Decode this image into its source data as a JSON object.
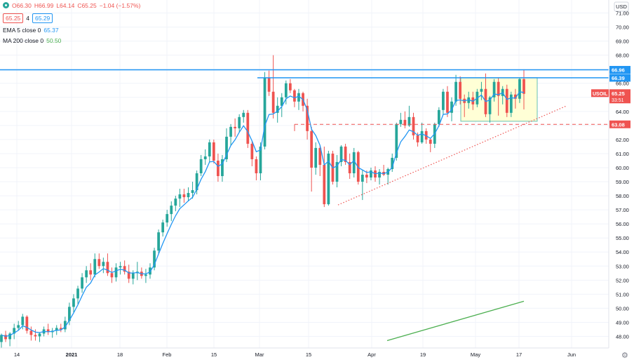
{
  "legend": {
    "open": "O66.30",
    "high": "H66.99",
    "low": "L64.14",
    "close": "C65.25",
    "change": "−1.04 (−1.57%)",
    "bid": "65.25",
    "count": "4",
    "ask": "65.29",
    "ema_label": "EMA 5 close 0",
    "ema_value": "65.37",
    "ma_label": "MA 200 close 0",
    "ma_value": "50.50"
  },
  "currency": "USD",
  "colors": {
    "up": "#26a69a",
    "down": "#ef5350",
    "ema": "#2196f3",
    "ma": "#4caf50",
    "level": "#2196f3",
    "range_fill": "#ffffd6",
    "range_border": "#26a69a"
  },
  "chart_data": {
    "type": "candlestick",
    "symbol": "USOIL",
    "y_ticks": [
      48,
      49,
      50,
      51,
      52,
      53,
      54,
      55,
      56,
      57,
      58,
      59,
      60,
      61,
      62,
      63,
      64,
      65,
      66,
      67,
      68,
      69,
      70,
      71
    ],
    "ylim": [
      47.5,
      71.6
    ],
    "x_labels": [
      "14",
      "2021",
      "18",
      "Feb",
      "15",
      "Mar",
      "15",
      "Apr",
      "19",
      "May",
      "17",
      "Jun"
    ],
    "series": [
      {
        "name": "USOIL",
        "ohlc": [
          [
            47.6,
            48.2,
            47.2,
            48.1
          ],
          [
            48.1,
            48.4,
            47.6,
            47.8
          ],
          [
            47.8,
            48.3,
            47.3,
            48.2
          ],
          [
            48.2,
            48.9,
            47.8,
            48.6
          ],
          [
            48.6,
            49.1,
            48.4,
            48.8
          ],
          [
            48.8,
            49.6,
            48.5,
            49.4
          ],
          [
            49.4,
            49.5,
            48.2,
            48.4
          ],
          [
            48.4,
            48.7,
            47.7,
            48.1
          ],
          [
            48.1,
            48.5,
            47.7,
            48.0
          ],
          [
            48.0,
            48.3,
            47.6,
            48.2
          ],
          [
            48.2,
            48.7,
            48.0,
            48.5
          ],
          [
            48.5,
            48.9,
            48.1,
            48.3
          ],
          [
            48.3,
            48.6,
            47.9,
            48.4
          ],
          [
            48.4,
            48.8,
            48.1,
            48.6
          ],
          [
            48.6,
            48.9,
            48.3,
            48.5
          ],
          [
            48.5,
            49.4,
            48.3,
            49.1
          ],
          [
            49.1,
            50.4,
            48.8,
            50.1
          ],
          [
            50.1,
            51.0,
            49.7,
            50.7
          ],
          [
            50.7,
            51.6,
            50.3,
            51.4
          ],
          [
            51.4,
            52.5,
            51.1,
            52.2
          ],
          [
            52.2,
            53.0,
            51.8,
            52.7
          ],
          [
            52.7,
            53.2,
            52.0,
            52.4
          ],
          [
            52.4,
            53.9,
            52.2,
            53.5
          ],
          [
            53.5,
            53.9,
            52.8,
            53.0
          ],
          [
            53.0,
            53.6,
            52.5,
            53.3
          ],
          [
            53.3,
            53.9,
            52.3,
            52.5
          ],
          [
            52.5,
            52.9,
            51.8,
            52.2
          ],
          [
            52.2,
            53.2,
            51.9,
            52.9
          ],
          [
            52.9,
            53.3,
            52.4,
            53.0
          ],
          [
            53.0,
            53.4,
            52.4,
            52.6
          ],
          [
            52.6,
            53.1,
            51.8,
            52.1
          ],
          [
            52.1,
            52.7,
            51.7,
            52.5
          ],
          [
            52.5,
            53.3,
            52.0,
            52.6
          ],
          [
            52.6,
            52.9,
            52.1,
            52.3
          ],
          [
            52.3,
            52.8,
            51.8,
            52.4
          ],
          [
            52.4,
            53.2,
            52.1,
            52.9
          ],
          [
            52.9,
            54.3,
            52.7,
            54.1
          ],
          [
            54.1,
            55.6,
            53.9,
            55.4
          ],
          [
            55.4,
            56.3,
            55.1,
            56.1
          ],
          [
            56.1,
            57.0,
            55.8,
            56.7
          ],
          [
            56.7,
            57.6,
            56.2,
            57.3
          ],
          [
            57.3,
            58.0,
            56.9,
            57.8
          ],
          [
            57.8,
            58.5,
            57.2,
            58.1
          ],
          [
            58.1,
            58.5,
            57.5,
            57.9
          ],
          [
            57.9,
            58.6,
            57.6,
            58.2
          ],
          [
            58.2,
            59.0,
            57.8,
            58.4
          ],
          [
            58.4,
            59.8,
            58.1,
            59.6
          ],
          [
            59.6,
            60.9,
            59.4,
            60.6
          ],
          [
            60.6,
            61.3,
            60.2,
            60.8
          ],
          [
            60.8,
            62.0,
            60.4,
            61.8
          ],
          [
            61.8,
            62.0,
            60.3,
            60.5
          ],
          [
            60.5,
            61.0,
            59.0,
            59.4
          ],
          [
            59.4,
            60.9,
            59.0,
            60.6
          ],
          [
            60.6,
            62.8,
            60.4,
            62.2
          ],
          [
            62.2,
            63.1,
            61.6,
            62.9
          ],
          [
            62.9,
            63.5,
            62.2,
            62.8
          ],
          [
            62.8,
            63.8,
            62.5,
            63.6
          ],
          [
            63.6,
            64.1,
            63.2,
            63.9
          ],
          [
            63.9,
            64.1,
            61.4,
            61.7
          ],
          [
            61.7,
            61.9,
            60.1,
            60.6
          ],
          [
            60.6,
            60.8,
            59.1,
            59.6
          ],
          [
            59.6,
            61.8,
            59.1,
            61.5
          ],
          [
            61.5,
            66.8,
            61.3,
            66.4
          ],
          [
            66.4,
            66.9,
            65.1,
            65.4
          ],
          [
            65.4,
            68.0,
            63.5,
            63.9
          ],
          [
            63.9,
            65.0,
            63.2,
            64.4
          ],
          [
            64.4,
            65.3,
            63.6,
            65.0
          ],
          [
            65.0,
            66.2,
            64.5,
            66.0
          ],
          [
            66.0,
            66.3,
            65.3,
            65.5
          ],
          [
            65.5,
            65.6,
            64.3,
            64.7
          ],
          [
            64.7,
            65.6,
            64.1,
            65.3
          ],
          [
            65.3,
            65.4,
            64.0,
            64.4
          ],
          [
            64.4,
            64.9,
            62.0,
            62.6
          ],
          [
            62.6,
            62.9,
            58.3,
            60.0
          ],
          [
            60.0,
            61.8,
            59.5,
            61.4
          ],
          [
            61.4,
            61.6,
            59.4,
            60.2
          ],
          [
            60.2,
            61.5,
            57.2,
            57.4
          ],
          [
            57.4,
            61.2,
            57.3,
            61.0
          ],
          [
            61.0,
            61.2,
            58.8,
            59.0
          ],
          [
            59.0,
            60.9,
            58.6,
            60.4
          ],
          [
            60.4,
            61.6,
            60.1,
            61.5
          ],
          [
            61.5,
            61.7,
            60.2,
            60.4
          ],
          [
            60.4,
            61.0,
            59.2,
            59.6
          ],
          [
            59.6,
            61.4,
            59.3,
            61.1
          ],
          [
            61.1,
            61.2,
            58.8,
            59.0
          ],
          [
            59.0,
            59.8,
            57.7,
            59.5
          ],
          [
            59.5,
            59.8,
            58.9,
            59.3
          ],
          [
            59.3,
            60.0,
            59.1,
            59.8
          ],
          [
            59.8,
            60.1,
            59.0,
            59.3
          ],
          [
            59.3,
            59.9,
            58.8,
            59.7
          ],
          [
            59.7,
            60.2,
            59.4,
            59.5
          ],
          [
            59.5,
            60.0,
            58.8,
            59.9
          ],
          [
            59.9,
            61.0,
            59.7,
            60.7
          ],
          [
            60.7,
            63.2,
            60.5,
            63.1
          ],
          [
            63.1,
            63.9,
            62.9,
            63.4
          ],
          [
            63.4,
            64.0,
            62.8,
            63.0
          ],
          [
            63.0,
            64.4,
            62.9,
            63.6
          ],
          [
            63.6,
            63.9,
            62.0,
            62.3
          ],
          [
            62.3,
            62.5,
            61.5,
            61.8
          ],
          [
            61.8,
            63.2,
            61.7,
            62.6
          ],
          [
            62.6,
            62.8,
            61.7,
            62.0
          ],
          [
            62.0,
            62.1,
            61.1,
            61.7
          ],
          [
            61.7,
            63.2,
            61.4,
            63.1
          ],
          [
            63.1,
            64.3,
            62.9,
            64.1
          ],
          [
            64.1,
            65.6,
            63.8,
            65.4
          ],
          [
            65.4,
            65.8,
            63.6,
            63.9
          ],
          [
            63.9,
            65.0,
            63.3,
            64.7
          ],
          [
            64.7,
            66.6,
            64.4,
            66.1
          ],
          [
            66.1,
            66.5,
            64.5,
            64.9
          ],
          [
            64.9,
            65.2,
            63.6,
            64.6
          ],
          [
            64.6,
            65.4,
            64.2,
            65.0
          ],
          [
            65.0,
            65.4,
            64.1,
            64.5
          ],
          [
            64.5,
            65.6,
            64.3,
            65.4
          ],
          [
            65.4,
            66.1,
            64.8,
            65.6
          ],
          [
            65.6,
            66.7,
            63.6,
            63.8
          ],
          [
            63.8,
            65.1,
            63.2,
            65.0
          ],
          [
            65.0,
            66.3,
            64.7,
            66.1
          ],
          [
            66.1,
            66.4,
            63.7,
            65.1
          ],
          [
            65.1,
            65.8,
            64.5,
            65.6
          ],
          [
            65.6,
            65.9,
            63.6,
            63.9
          ],
          [
            63.9,
            65.4,
            63.6,
            65.2
          ],
          [
            65.2,
            65.6,
            64.2,
            64.9
          ],
          [
            64.9,
            66.4,
            64.6,
            66.3
          ],
          [
            66.3,
            66.99,
            64.14,
            65.25
          ]
        ]
      },
      {
        "name": "EMA 5 close 0"
      },
      {
        "name": "MA 200 close 0",
        "values": [
          47.7,
          50.5
        ]
      }
    ],
    "levels": [
      {
        "value": 66.96,
        "label": "66.96"
      },
      {
        "value": 66.39,
        "label": "66.39"
      },
      {
        "value": 63.08,
        "label": "63.08"
      }
    ],
    "current_price": {
      "symbol": "USOIL",
      "value": "65.25",
      "countdown": "33:51"
    },
    "range_box": {
      "top": 66.4,
      "bottom": 63.3
    },
    "trendline": {
      "from": [
        57.4,
        "late Mar"
      ],
      "to": [
        64.4,
        "end May"
      ]
    },
    "grid": true,
    "legend_position": "top-left"
  }
}
